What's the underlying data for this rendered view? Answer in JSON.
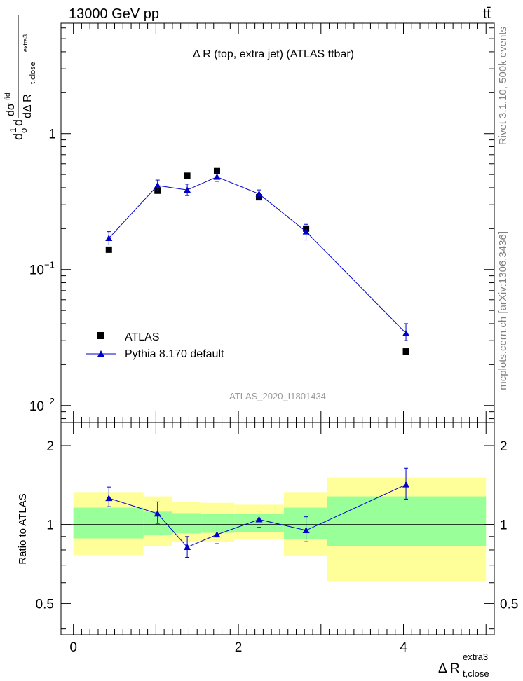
{
  "header": {
    "left": "13000 GeV pp",
    "right": "tt̄"
  },
  "side_labels": {
    "rivet": "Rivet 3.1.10,  500k events",
    "mcplots": "mcplots.cern.ch [arXiv:1306.3436]"
  },
  "chart_data": [
    {
      "type": "scatter",
      "title": "Δ R (top, extra jet) (ATLAS ttbar)",
      "watermark": "ATLAS_2020_I1801434",
      "ylabel": {
        "main": "dσ/dΔ R(t,close extra3) · 1/σ",
        "parts": [
          "d",
          "1",
          "σ",
          "d",
          "dσ",
          "fid",
          "dΔ R",
          "t,close",
          "extra3"
        ]
      },
      "yscale": "log",
      "ylim": [
        0.0075,
        6.5
      ],
      "xlim": [
        -0.15,
        5.1
      ],
      "yticks": [
        {
          "v": 1,
          "label": "1"
        },
        {
          "v": 0.1,
          "base": "10",
          "exp": "−1"
        },
        {
          "v": 0.01,
          "base": "10",
          "exp": "−2"
        }
      ],
      "legend": {
        "position": "bottom-left",
        "entries": [
          "ATLAS",
          "Pythia 8.170 default"
        ]
      },
      "series": [
        {
          "name": "ATLAS",
          "style": "marker-square",
          "color": "#000000",
          "x": [
            0.43,
            1.02,
            1.38,
            1.74,
            2.25,
            2.82,
            4.03
          ],
          "y": [
            0.14,
            0.38,
            0.49,
            0.53,
            0.34,
            0.2,
            0.025
          ],
          "err": [
            0,
            0,
            0,
            0.015,
            0.015,
            0.015,
            0
          ]
        },
        {
          "name": "Pythia 8.170 default",
          "style": "line-triangle",
          "color": "#0000cc",
          "x": [
            0.43,
            1.02,
            1.38,
            1.74,
            2.25,
            2.82,
            4.03
          ],
          "y": [
            0.17,
            0.415,
            0.385,
            0.48,
            0.36,
            0.19,
            0.034
          ],
          "err_lo": [
            0.018,
            0.035,
            0.035,
            0.035,
            0.025,
            0.025,
            0.004
          ],
          "err_hi": [
            0.02,
            0.04,
            0.04,
            0.04,
            0.025,
            0.025,
            0.006
          ]
        }
      ]
    },
    {
      "type": "scatter",
      "ylabel": "Ratio to ATLAS",
      "xlabel": {
        "main": "Δ R",
        "sub": "t,close",
        "sup": "extra3"
      },
      "ylim": [
        0.38,
        2.45
      ],
      "xlim": [
        -0.15,
        5.1
      ],
      "xticks": [
        0,
        2,
        4
      ],
      "yticks": [
        2,
        1,
        0.5
      ],
      "bands": {
        "edges": [
          0,
          0.85,
          1.2,
          1.55,
          1.95,
          2.55,
          3.07,
          5.0
        ],
        "yellow": [
          [
            0.765,
            1.33
          ],
          [
            0.825,
            1.28
          ],
          [
            0.86,
            1.22
          ],
          [
            0.86,
            1.21
          ],
          [
            0.88,
            1.19
          ],
          [
            0.76,
            1.33
          ],
          [
            0.61,
            1.51
          ]
        ],
        "green": [
          [
            0.885,
            1.16
          ],
          [
            0.91,
            1.12
          ],
          [
            0.925,
            1.105
          ],
          [
            0.93,
            1.1
          ],
          [
            0.935,
            1.095
          ],
          [
            0.88,
            1.16
          ],
          [
            0.83,
            1.28
          ]
        ]
      },
      "series": [
        {
          "name": "Pythia 8.170 default",
          "color": "#0000cc",
          "x": [
            0.43,
            1.02,
            1.38,
            1.74,
            2.25,
            2.82,
            4.03
          ],
          "y": [
            1.26,
            1.1,
            0.82,
            0.915,
            1.045,
            0.95,
            1.42
          ],
          "err_lo": [
            0.09,
            0.09,
            0.07,
            0.07,
            0.07,
            0.09,
            0.17
          ],
          "err_hi": [
            0.13,
            0.12,
            0.08,
            0.08,
            0.08,
            0.12,
            0.22
          ]
        }
      ]
    }
  ]
}
